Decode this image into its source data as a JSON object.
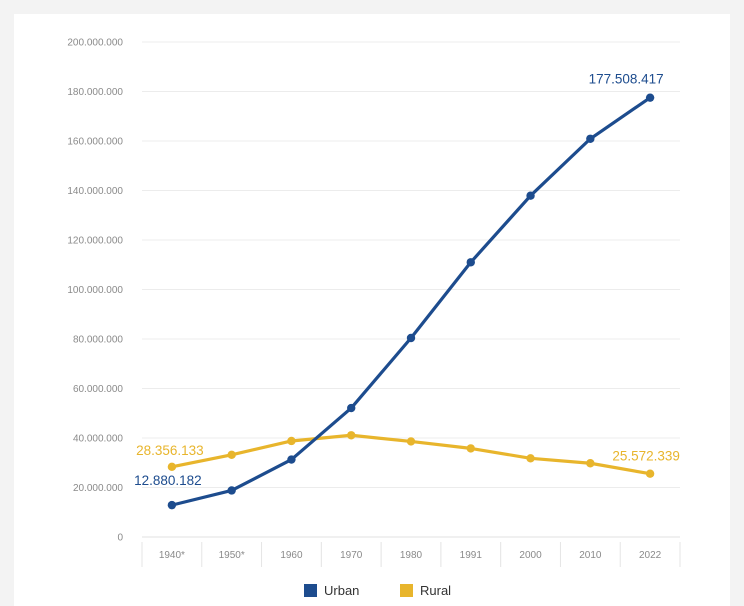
{
  "chart_data": {
    "type": "line",
    "categories": [
      "1940*",
      "1950*",
      "1960",
      "1970",
      "1980",
      "1991",
      "2000",
      "2010",
      "2022"
    ],
    "series": [
      {
        "name": "Urban",
        "color": "#1d4c8e",
        "values": [
          12880182,
          18800000,
          31300000,
          52100000,
          80400000,
          111000000,
          137900000,
          160900000,
          177508417
        ],
        "labels": [
          {
            "index": 0,
            "text": "12.880.182"
          },
          {
            "index": 8,
            "text": "177.508.417"
          }
        ]
      },
      {
        "name": "Rural",
        "color": "#e8b52c",
        "values": [
          28356133,
          33200000,
          38800000,
          41100000,
          38600000,
          35800000,
          31800000,
          29800000,
          25572339
        ],
        "labels": [
          {
            "index": 0,
            "text": "28.356.133"
          },
          {
            "index": 8,
            "text": "25.572.339"
          }
        ]
      }
    ],
    "y_ticks": [
      "0",
      "20.000.000",
      "40.000.000",
      "60.000.000",
      "80.000.000",
      "100.000.000",
      "120.000.000",
      "140.000.000",
      "160.000.000",
      "180.000.000",
      "200.000.000"
    ],
    "ylim": [
      0,
      200000000
    ],
    "grid": true,
    "legend_position": "bottom"
  }
}
